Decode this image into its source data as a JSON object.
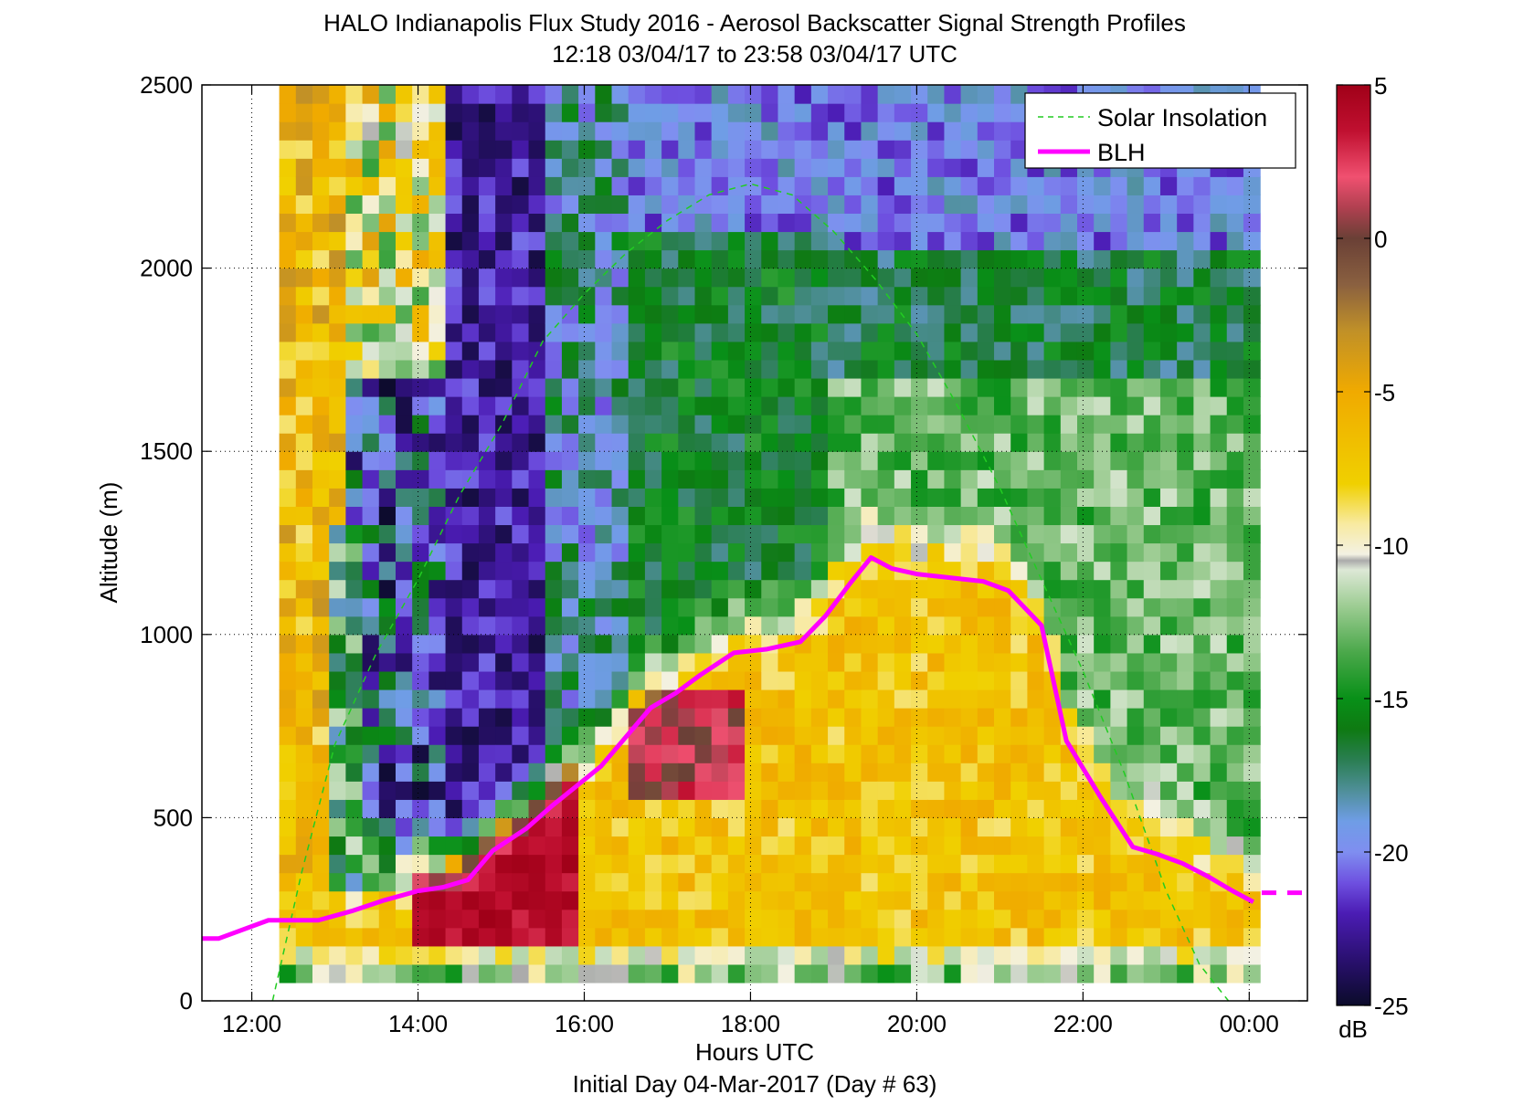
{
  "chart_data": {
    "type": "heatmap",
    "title": "HALO Indianapolis Flux Study 2016 - Aerosol Backscatter Signal Strength Profiles",
    "subtitle": "12:18 03/04/17 to 23:58 03/04/17  UTC",
    "xlabel": "Hours UTC",
    "xlabel2": "Initial Day 04-Mar-2017 (Day # 63)",
    "ylabel": "Altitude (m)",
    "xlim": [
      11.4,
      24.7
    ],
    "ylim": [
      0,
      2500
    ],
    "x_ticks": [
      12,
      14,
      16,
      18,
      20,
      22,
      24
    ],
    "x_tick_labels": [
      "12:00",
      "14:00",
      "16:00",
      "18:00",
      "20:00",
      "22:00",
      "00:00"
    ],
    "y_ticks": [
      0,
      500,
      1000,
      1500,
      2000,
      2500
    ],
    "y_tick_labels": [
      "0",
      "500",
      "1000",
      "1500",
      "2000",
      "2500"
    ],
    "grid": true,
    "legend_position": "top-right",
    "colorbar": {
      "label": "dB",
      "min": -25,
      "max": 5,
      "ticks": [
        5,
        0,
        -5,
        -10,
        -15,
        -20,
        -25
      ],
      "tick_labels": [
        "5",
        "0",
        "-5",
        "-10",
        "-15",
        "-20",
        "-25"
      ],
      "stops": [
        {
          "v": -25,
          "c": "#0b0b2a"
        },
        {
          "v": -23.5,
          "c": "#2a1070"
        },
        {
          "v": -22,
          "c": "#4b1cb4"
        },
        {
          "v": -21,
          "c": "#6e50e0"
        },
        {
          "v": -20,
          "c": "#7f8ef0"
        },
        {
          "v": -19,
          "c": "#6f9de6"
        },
        {
          "v": -18,
          "c": "#4f8f99"
        },
        {
          "v": -17,
          "c": "#2a7e52"
        },
        {
          "v": -16,
          "c": "#0e7a12"
        },
        {
          "v": -15,
          "c": "#089018"
        },
        {
          "v": -13.5,
          "c": "#4aa84a"
        },
        {
          "v": -12,
          "c": "#9ccc92"
        },
        {
          "v": -10.8,
          "c": "#dde8d6"
        },
        {
          "v": -10.5,
          "c": "#aaaaaa"
        },
        {
          "v": -10.3,
          "c": "#f3f1e3"
        },
        {
          "v": -9.3,
          "c": "#f8eaa0"
        },
        {
          "v": -8,
          "c": "#f0d000"
        },
        {
          "v": -5,
          "c": "#f0aa00"
        },
        {
          "v": -3,
          "c": "#c09028"
        },
        {
          "v": -1.5,
          "c": "#8a6040"
        },
        {
          "v": 0,
          "c": "#6a4036"
        },
        {
          "v": 1,
          "c": "#b04050"
        },
        {
          "v": 2,
          "c": "#f05070"
        },
        {
          "v": 3.5,
          "c": "#c01030"
        },
        {
          "v": 5,
          "c": "#a00018"
        }
      ]
    },
    "heatmap": {
      "x_start": 12.33,
      "x_step": 0.2,
      "x_count": 59,
      "y_start": 50,
      "y_step": 50,
      "y_count": 49
    },
    "series": [
      {
        "name": "Solar Insolation",
        "style": "dashed",
        "color": "#22cc22",
        "x": [
          12.25,
          12.6,
          13.0,
          13.5,
          14.0,
          14.5,
          15.0,
          15.5,
          16.0,
          16.5,
          17.0,
          17.5,
          18.0,
          18.5,
          19.0,
          19.5,
          20.0,
          20.5,
          21.0,
          21.5,
          22.0,
          22.5,
          23.0,
          23.4,
          23.75
        ],
        "y": [
          0,
          350,
          700,
          950,
          1150,
          1380,
          1570,
          1800,
          1930,
          2040,
          2130,
          2200,
          2230,
          2200,
          2100,
          1970,
          1820,
          1620,
          1400,
          1150,
          900,
          620,
          300,
          100,
          0
        ]
      },
      {
        "name": "BLH",
        "style": "solid",
        "color": "#ff00ff",
        "x": [
          11.4,
          11.6,
          12.2,
          12.8,
          13.2,
          13.6,
          14.0,
          14.3,
          14.6,
          14.9,
          15.3,
          15.6,
          15.9,
          16.2,
          16.5,
          16.8,
          17.1,
          17.4,
          17.8,
          18.2,
          18.6,
          18.9,
          19.2,
          19.45,
          19.7,
          20.0,
          20.4,
          20.8,
          21.1,
          21.5,
          21.8,
          22.2,
          22.6,
          22.9,
          23.2,
          23.5,
          23.8,
          24.05
        ],
        "y": [
          170,
          170,
          220,
          220,
          245,
          275,
          300,
          310,
          330,
          410,
          470,
          530,
          585,
          640,
          720,
          800,
          840,
          890,
          950,
          960,
          980,
          1050,
          1140,
          1210,
          1180,
          1165,
          1155,
          1145,
          1120,
          1025,
          710,
          560,
          420,
          400,
          375,
          340,
          300,
          270
        ]
      },
      {
        "name": "BLH",
        "style": "dashed",
        "color": "#ff00ff",
        "x": [
          24.15,
          24.65
        ],
        "y": [
          295,
          295
        ]
      }
    ],
    "legend": [
      "Solar Insolation",
      "BLH"
    ]
  }
}
